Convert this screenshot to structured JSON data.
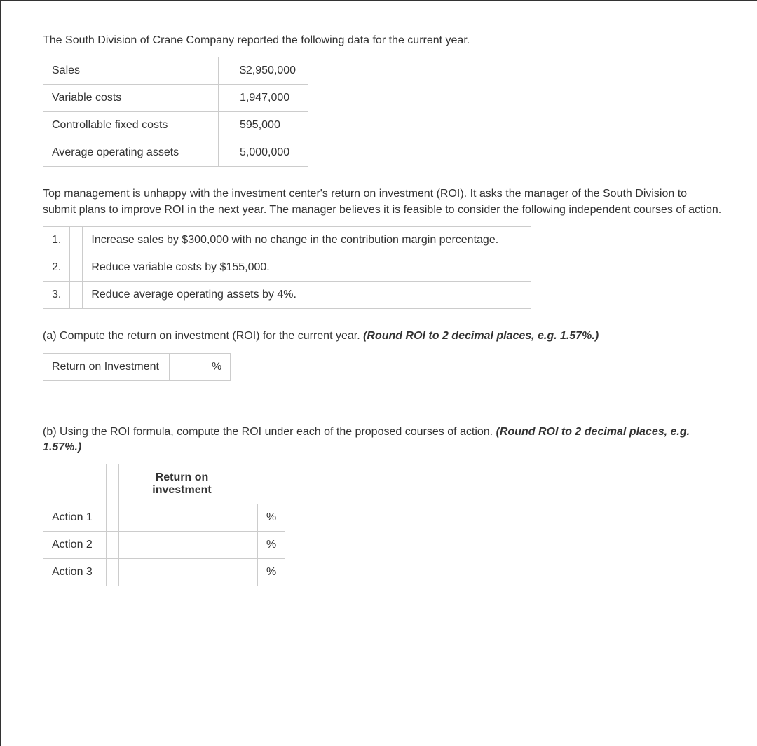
{
  "intro1": "The South Division of Crane Company reported the following data for the current year.",
  "financials": {
    "rows": [
      {
        "label": "Sales",
        "value": "$2,950,000"
      },
      {
        "label": "Variable costs",
        "value": "1,947,000"
      },
      {
        "label": "Controllable fixed costs",
        "value": "595,000"
      },
      {
        "label": "Average operating assets",
        "value": "5,000,000"
      }
    ]
  },
  "intro2": "Top management is unhappy with the investment center's return on investment (ROI). It asks the manager of the South Division to submit plans to improve ROI in the next year. The manager believes it is feasible to consider the following independent courses of action.",
  "actions": {
    "rows": [
      {
        "num": "1.",
        "desc": "Increase sales by $300,000 with no change in the contribution margin percentage."
      },
      {
        "num": "2.",
        "desc": "Reduce variable costs by $155,000."
      },
      {
        "num": "3.",
        "desc": "Reduce average operating assets by 4%."
      }
    ]
  },
  "partA": {
    "prefix": "(a)",
    "text": " Compute the return on investment (ROI) for the current year. ",
    "hint": "(Round ROI to 2 decimal places, e.g. 1.57%.)",
    "row_label": "Return on Investment",
    "unit": "%"
  },
  "partB": {
    "prefix": "(b)",
    "text": " Using the ROI formula, compute the ROI under each of the proposed courses of action. ",
    "hint": "(Round ROI to 2 decimal places, e.g. 1.57%.)",
    "header": "Return on investment",
    "rows": [
      {
        "label": "Action 1",
        "unit": "%"
      },
      {
        "label": "Action 2",
        "unit": "%"
      },
      {
        "label": "Action 3",
        "unit": "%"
      }
    ]
  }
}
